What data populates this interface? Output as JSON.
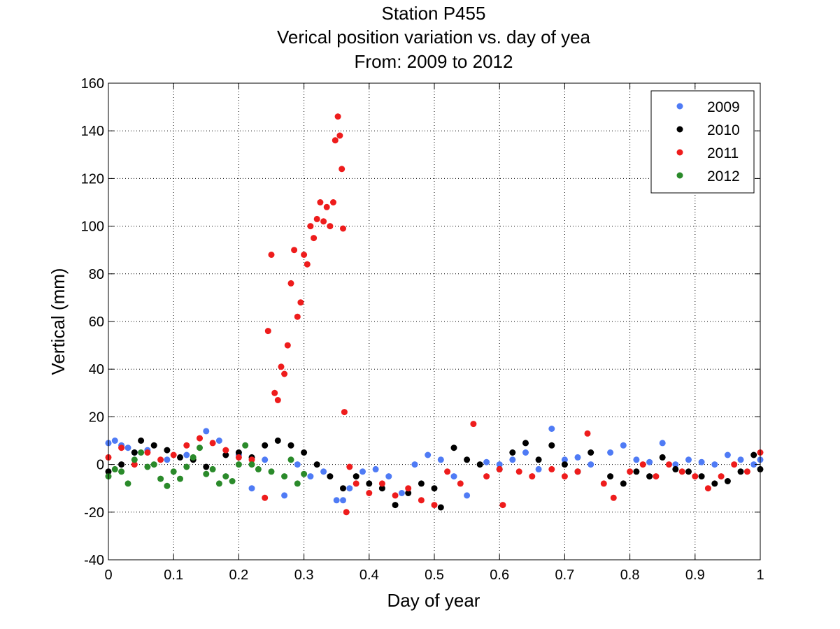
{
  "chart_data": {
    "type": "scatter",
    "title_lines": [
      "Station P455",
      "Verical position variation vs. day of yea",
      "From: 2009 to 2012"
    ],
    "xlabel": "Day of year",
    "ylabel": "Vertical (mm)",
    "xlim": [
      0,
      1
    ],
    "ylim": [
      -40,
      160
    ],
    "xticks": [
      0,
      0.1,
      0.2,
      0.3,
      0.4,
      0.5,
      0.6,
      0.7,
      0.8,
      0.9,
      1
    ],
    "xtick_labels": [
      "0",
      "0.1",
      "0.2",
      "0.3",
      "0.4",
      "0.5",
      "0.6",
      "0.7",
      "0.8",
      "0.9",
      "1"
    ],
    "yticks": [
      -40,
      -20,
      0,
      20,
      40,
      60,
      80,
      100,
      120,
      140,
      160
    ],
    "ytick_labels": [
      "-40",
      "-20",
      "0",
      "20",
      "40",
      "60",
      "80",
      "100",
      "120",
      "140",
      "160"
    ],
    "grid": true,
    "legend_position": "top-right",
    "series": [
      {
        "name": "2009",
        "color": "#4f7bf5",
        "x": [
          0.0,
          0.01,
          0.02,
          0.03,
          0.04,
          0.06,
          0.09,
          0.12,
          0.15,
          0.17,
          0.2,
          0.22,
          0.24,
          0.27,
          0.29,
          0.31,
          0.33,
          0.35,
          0.36,
          0.37,
          0.39,
          0.41,
          0.43,
          0.45,
          0.47,
          0.49,
          0.51,
          0.53,
          0.55,
          0.58,
          0.6,
          0.62,
          0.64,
          0.66,
          0.68,
          0.7,
          0.72,
          0.74,
          0.77,
          0.79,
          0.81,
          0.83,
          0.85,
          0.87,
          0.89,
          0.91,
          0.93,
          0.95,
          0.97,
          0.99,
          1.0
        ],
        "y": [
          9,
          10,
          8,
          7,
          5,
          6,
          2,
          4,
          14,
          10,
          4,
          -10,
          2,
          -13,
          0,
          -5,
          -3,
          -15,
          -15,
          -10,
          -3,
          -2,
          -5,
          -12,
          0,
          4,
          2,
          -5,
          -13,
          1,
          0,
          2,
          5,
          -2,
          15,
          2,
          3,
          0,
          5,
          8,
          2,
          1,
          9,
          0,
          2,
          1,
          0,
          4,
          2,
          0,
          2
        ]
      },
      {
        "name": "2010",
        "color": "#000000",
        "x": [
          0.0,
          0.02,
          0.04,
          0.05,
          0.07,
          0.09,
          0.11,
          0.13,
          0.15,
          0.18,
          0.2,
          0.22,
          0.24,
          0.26,
          0.28,
          0.3,
          0.32,
          0.34,
          0.36,
          0.38,
          0.4,
          0.42,
          0.44,
          0.46,
          0.48,
          0.5,
          0.51,
          0.53,
          0.55,
          0.57,
          0.6,
          0.62,
          0.64,
          0.66,
          0.68,
          0.7,
          0.72,
          0.74,
          0.77,
          0.79,
          0.81,
          0.83,
          0.85,
          0.87,
          0.89,
          0.91,
          0.93,
          0.95,
          0.97,
          0.99,
          1.0
        ],
        "y": [
          -3,
          0,
          5,
          10,
          8,
          6,
          3,
          2,
          -1,
          4,
          5,
          3,
          8,
          10,
          8,
          5,
          0,
          -5,
          -10,
          -5,
          -8,
          -10,
          -17,
          -12,
          -8,
          -10,
          -18,
          7,
          2,
          0,
          -2,
          5,
          9,
          2,
          8,
          0,
          -3,
          5,
          -5,
          -8,
          -3,
          -5,
          3,
          -2,
          -3,
          -5,
          -8,
          -7,
          -3,
          4,
          -2
        ]
      },
      {
        "name": "2011",
        "color": "#ee1c1c",
        "x": [
          0.0,
          0.02,
          0.04,
          0.06,
          0.08,
          0.1,
          0.12,
          0.14,
          0.16,
          0.18,
          0.2,
          0.22,
          0.24,
          0.245,
          0.25,
          0.255,
          0.26,
          0.265,
          0.27,
          0.275,
          0.28,
          0.285,
          0.29,
          0.295,
          0.3,
          0.305,
          0.31,
          0.315,
          0.32,
          0.325,
          0.33,
          0.335,
          0.34,
          0.345,
          0.348,
          0.352,
          0.355,
          0.358,
          0.36,
          0.362,
          0.365,
          0.37,
          0.38,
          0.4,
          0.42,
          0.44,
          0.46,
          0.48,
          0.5,
          0.52,
          0.54,
          0.56,
          0.58,
          0.6,
          0.605,
          0.63,
          0.65,
          0.68,
          0.7,
          0.72,
          0.735,
          0.76,
          0.775,
          0.8,
          0.82,
          0.84,
          0.86,
          0.88,
          0.9,
          0.92,
          0.94,
          0.96,
          0.98,
          1.0
        ],
        "y": [
          3,
          7,
          0,
          5,
          2,
          4,
          8,
          11,
          9,
          6,
          3,
          2,
          -14,
          56,
          88,
          30,
          27,
          41,
          38,
          50,
          76,
          90,
          62,
          68,
          88,
          84,
          100,
          95,
          103,
          110,
          102,
          108,
          100,
          110,
          136,
          146,
          138,
          124,
          99,
          22,
          -20,
          -1,
          -8,
          -12,
          -8,
          -13,
          -10,
          -15,
          -17,
          -3,
          -8,
          17,
          -5,
          -2,
          -17,
          -3,
          -5,
          -2,
          -5,
          -3,
          13,
          -8,
          -14,
          -3,
          0,
          -5,
          0,
          -3,
          -5,
          -10,
          -5,
          0,
          -3,
          5
        ]
      },
      {
        "name": "2012",
        "color": "#2a8a2a",
        "x": [
          0.0,
          0.01,
          0.02,
          0.03,
          0.04,
          0.05,
          0.06,
          0.07,
          0.08,
          0.09,
          0.1,
          0.11,
          0.12,
          0.13,
          0.14,
          0.15,
          0.16,
          0.17,
          0.18,
          0.19,
          0.2,
          0.21,
          0.22,
          0.23,
          0.25,
          0.27,
          0.28,
          0.29,
          0.3
        ],
        "y": [
          -5,
          -2,
          -3,
          -8,
          2,
          5,
          -1,
          0,
          -6,
          -9,
          -3,
          -6,
          -1,
          3,
          7,
          -4,
          -2,
          -8,
          -5,
          -7,
          0,
          8,
          0,
          -2,
          -3,
          -5,
          2,
          -8,
          -4
        ]
      }
    ]
  }
}
